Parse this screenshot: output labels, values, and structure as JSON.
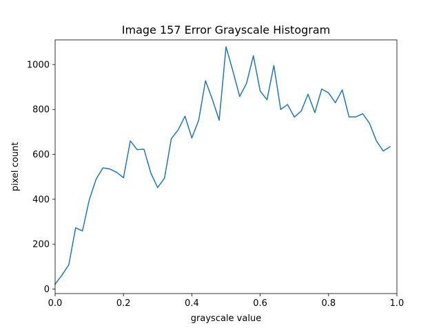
{
  "chart_data": {
    "type": "line",
    "title": "Image 157 Error Grayscale Histogram",
    "xlabel": "grayscale value",
    "ylabel": "pixel count",
    "xlim": [
      0,
      1
    ],
    "ylim": [
      -20,
      1110
    ],
    "xticks": [
      0.0,
      0.2,
      0.4,
      0.6,
      0.8,
      1.0
    ],
    "xtick_labels": [
      "0.0",
      "0.2",
      "0.4",
      "0.6",
      "0.8",
      "1.0"
    ],
    "yticks": [
      0,
      200,
      400,
      600,
      800,
      1000
    ],
    "ytick_labels": [
      "0",
      "200",
      "400",
      "600",
      "800",
      "1000"
    ],
    "grid": false,
    "series": [
      {
        "color": "#1f77b4",
        "x": [
          0.0,
          0.02,
          0.04,
          0.06,
          0.08,
          0.1,
          0.12,
          0.14,
          0.16,
          0.18,
          0.2,
          0.22,
          0.24,
          0.26,
          0.28,
          0.3,
          0.32,
          0.34,
          0.36,
          0.38,
          0.4,
          0.42,
          0.44,
          0.46,
          0.48,
          0.5,
          0.52,
          0.54,
          0.56,
          0.58,
          0.6,
          0.62,
          0.64,
          0.66,
          0.68,
          0.7,
          0.72,
          0.74,
          0.76,
          0.78,
          0.8,
          0.82,
          0.84,
          0.86,
          0.88,
          0.9,
          0.92,
          0.94,
          0.96,
          0.98
        ],
        "y": [
          22,
          62,
          108,
          273,
          259,
          398,
          490,
          540,
          535,
          520,
          496,
          660,
          621,
          623,
          517,
          452,
          494,
          670,
          709,
          770,
          673,
          752,
          928,
          845,
          752,
          1079,
          972,
          858,
          916,
          1039,
          882,
          843,
          996,
          800,
          822,
          766,
          793,
          868,
          786,
          891,
          874,
          830,
          887,
          767,
          767,
          781,
          738,
          660,
          615,
          634
        ]
      }
    ]
  }
}
